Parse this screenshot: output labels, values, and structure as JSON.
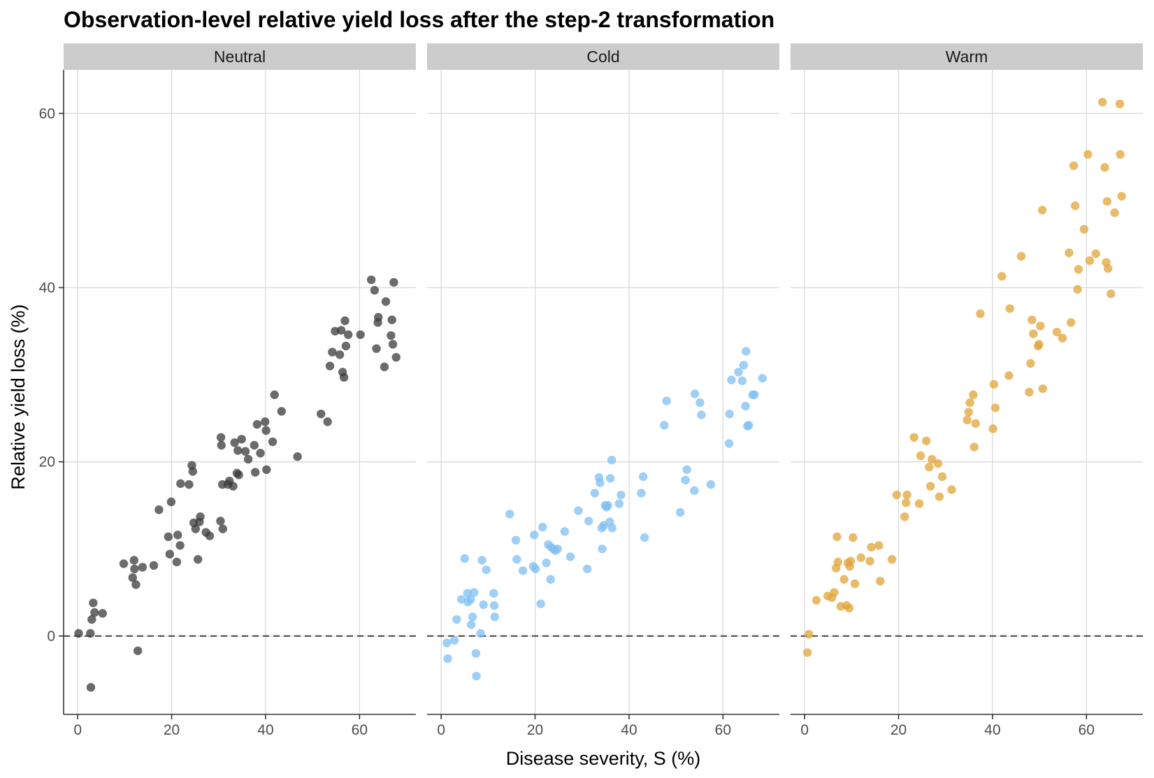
{
  "chart_data": {
    "type": "scatter",
    "title": "Observation-level relative yield loss after the step-2 transformation",
    "xlabel": "Disease severity, S (%)",
    "ylabel": "Relative yield loss (%)",
    "xlim": [
      -3,
      72
    ],
    "ylim": [
      -9,
      65
    ],
    "xticks": [
      0,
      20,
      40,
      60
    ],
    "yticks": [
      0,
      20,
      40,
      60
    ],
    "reference_line_y": 0,
    "grid": true,
    "panels": [
      {
        "name": "Neutral",
        "color": "#3a3a3a",
        "x": [
          0.2,
          2.8,
          2.7,
          3.0,
          3.3,
          3.6,
          5.3,
          9.8,
          11.7,
          12.0,
          12.1,
          12.4,
          12.8,
          13.8,
          16.2,
          17.3,
          19.3,
          19.6,
          19.9,
          21.1,
          21.3,
          21.8,
          21.9,
          23.7,
          24.3,
          24.5,
          24.7,
          25.1,
          25.6,
          25.9,
          26.1,
          27.3,
          28.1,
          30.4,
          30.5,
          30.6,
          30.8,
          30.9,
          32.0,
          32.3,
          33.1,
          33.4,
          33.9,
          34.1,
          34.3,
          34.9,
          35.7,
          36.3,
          37.6,
          37.8,
          38.2,
          38.9,
          39.9,
          40.1,
          40.2,
          41.5,
          41.9,
          43.4,
          46.8,
          51.8,
          53.2,
          53.7,
          54.2,
          54.8,
          55.8,
          56.1,
          56.4,
          56.7,
          56.9,
          57.1,
          57.6,
          60.2,
          62.5,
          63.2,
          63.6,
          63.9,
          64.0,
          65.3,
          65.6,
          66.7,
          66.9,
          67.1,
          67.3,
          67.8
        ],
        "y": [
          0.3,
          -5.9,
          0.3,
          1.9,
          3.8,
          2.7,
          2.6,
          8.3,
          6.7,
          8.7,
          7.7,
          5.9,
          -1.7,
          7.9,
          8.1,
          14.5,
          11.4,
          9.4,
          15.4,
          8.5,
          11.6,
          10.4,
          17.5,
          17.4,
          19.6,
          18.9,
          13.0,
          12.3,
          8.8,
          13.1,
          13.7,
          11.9,
          11.5,
          13.2,
          22.8,
          21.9,
          17.4,
          12.3,
          17.4,
          17.8,
          17.2,
          22.2,
          18.7,
          21.3,
          18.5,
          22.6,
          21.2,
          20.3,
          21.9,
          18.8,
          24.3,
          21.0,
          24.6,
          23.6,
          19.1,
          22.3,
          27.7,
          25.8,
          20.6,
          25.5,
          24.6,
          31.0,
          32.6,
          35.0,
          32.3,
          35.1,
          30.3,
          29.7,
          36.2,
          33.3,
          34.6,
          34.6,
          40.9,
          39.7,
          33.0,
          36.0,
          36.6,
          30.9,
          38.4,
          34.5,
          36.3,
          33.5,
          40.6,
          32.0
        ]
      },
      {
        "name": "Cold",
        "color": "#7fbff2",
        "x": [
          1.2,
          1.4,
          2.8,
          3.3,
          4.3,
          5.0,
          5.6,
          5.7,
          6.3,
          6.4,
          6.7,
          7.0,
          7.4,
          7.5,
          8.4,
          8.7,
          9.0,
          9.6,
          11.2,
          11.3,
          11.4,
          14.6,
          15.9,
          16.1,
          17.4,
          19.6,
          19.8,
          20.1,
          21.2,
          21.6,
          22.4,
          22.8,
          23.3,
          23.4,
          23.9,
          24.3,
          24.8,
          26.3,
          27.5,
          29.2,
          31.1,
          31.4,
          32.7,
          33.6,
          33.8,
          34.2,
          34.3,
          34.6,
          34.9,
          35.2,
          35.5,
          35.9,
          36.0,
          36.3,
          36.4,
          37.9,
          38.3,
          42.6,
          43.0,
          43.3,
          47.5,
          48.0,
          50.9,
          52.0,
          52.3,
          53.9,
          54.0,
          55.1,
          55.4,
          57.4,
          61.3,
          61.4,
          61.8,
          63.3,
          64.1,
          64.4,
          64.8,
          64.9,
          65.2,
          65.5,
          66.3,
          66.7,
          68.4
        ],
        "y": [
          -0.8,
          -2.6,
          -0.5,
          1.9,
          4.2,
          8.9,
          4.9,
          3.9,
          4.2,
          1.3,
          2.2,
          5.0,
          -2.0,
          -4.6,
          0.3,
          8.7,
          3.6,
          7.6,
          4.9,
          3.5,
          2.2,
          14.0,
          11.0,
          8.8,
          7.5,
          8.0,
          11.6,
          7.7,
          3.7,
          12.5,
          8.4,
          10.5,
          6.5,
          10.2,
          10.0,
          9.8,
          10.0,
          12.0,
          9.1,
          14.4,
          7.7,
          13.2,
          16.4,
          18.2,
          17.6,
          12.4,
          10.0,
          12.7,
          15.0,
          14.8,
          15.0,
          13.1,
          18.1,
          20.2,
          12.4,
          15.2,
          16.2,
          16.4,
          18.3,
          11.3,
          24.2,
          27.0,
          14.2,
          17.9,
          19.1,
          16.7,
          27.8,
          26.8,
          25.4,
          17.4,
          22.1,
          25.5,
          29.4,
          30.3,
          29.3,
          31.1,
          26.4,
          32.7,
          24.1,
          24.2,
          27.7,
          27.7,
          29.6
        ]
      },
      {
        "name": "Warm",
        "color": "#e0a43a",
        "x": [
          0.6,
          0.9,
          2.5,
          4.9,
          5.8,
          6.3,
          6.7,
          6.9,
          7.1,
          7.7,
          8.4,
          8.9,
          9.2,
          9.5,
          9.6,
          9.8,
          10.3,
          10.7,
          12.0,
          13.9,
          14.2,
          15.8,
          16.1,
          18.6,
          19.6,
          21.3,
          21.6,
          21.8,
          23.3,
          24.4,
          24.7,
          25.9,
          26.5,
          26.8,
          27.1,
          28.4,
          28.7,
          29.3,
          31.3,
          34.6,
          34.9,
          35.2,
          35.9,
          36.1,
          36.4,
          37.4,
          40.1,
          40.3,
          40.6,
          42.0,
          43.5,
          43.7,
          46.1,
          47.8,
          48.1,
          48.4,
          48.7,
          49.7,
          49.9,
          50.2,
          50.6,
          50.7,
          53.7,
          54.9,
          56.3,
          56.7,
          57.3,
          57.6,
          58.1,
          58.3,
          59.5,
          60.3,
          60.7,
          62.0,
          63.4,
          63.9,
          64.2,
          64.4,
          64.6,
          65.2,
          66.0,
          67.1,
          67.2,
          67.5
        ],
        "y": [
          -1.9,
          0.2,
          4.1,
          4.6,
          4.4,
          5.0,
          7.8,
          11.4,
          8.5,
          3.4,
          6.5,
          3.5,
          8.4,
          3.2,
          8.0,
          8.6,
          11.3,
          6.0,
          9.0,
          8.6,
          10.2,
          10.4,
          6.3,
          8.8,
          16.2,
          13.7,
          15.3,
          16.2,
          22.8,
          15.2,
          20.7,
          22.4,
          19.4,
          17.2,
          20.3,
          19.8,
          16.0,
          18.3,
          16.8,
          24.8,
          25.7,
          26.8,
          27.7,
          21.7,
          24.4,
          37.0,
          23.8,
          28.9,
          26.2,
          41.3,
          29.9,
          37.6,
          43.6,
          28.0,
          31.3,
          36.3,
          34.7,
          33.3,
          33.5,
          35.6,
          48.9,
          28.4,
          34.9,
          34.2,
          44.0,
          36.0,
          54.0,
          49.4,
          39.8,
          42.1,
          46.7,
          55.3,
          43.1,
          43.9,
          61.3,
          53.8,
          42.9,
          49.9,
          42.2,
          39.3,
          48.6,
          61.1,
          55.3,
          50.5
        ]
      }
    ]
  }
}
